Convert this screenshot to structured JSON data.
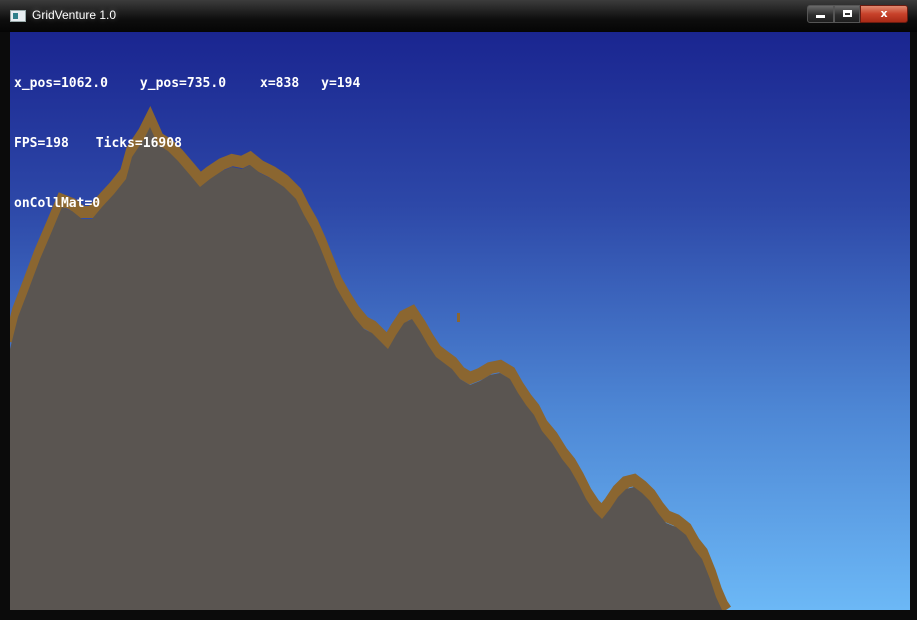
{
  "window": {
    "title": "GridVenture 1.0",
    "controls": {
      "minimize": "minimize",
      "maximize": "maximize",
      "close": "x"
    },
    "colors": {
      "close_button": "#c7412a",
      "frame": "#0b0b0b"
    }
  },
  "hud": {
    "x_pos": "x_pos=1062.0",
    "y_pos": "y_pos=735.0",
    "x": "x=838",
    "y": "y=194",
    "fps": "FPS=198",
    "ticks": "Ticks=16908",
    "on_coll_mat": "onCollMat=0"
  },
  "scene": {
    "sky_colors": [
      "#1a2590",
      "#6cb8f6"
    ],
    "rock_color": "#5a5551",
    "dirt_color": "#8b6630"
  }
}
